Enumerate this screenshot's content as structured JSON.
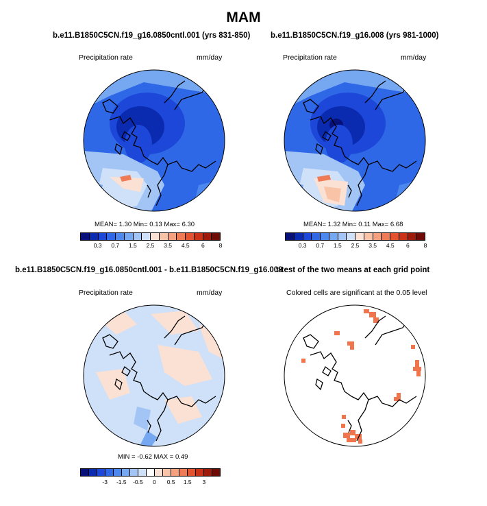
{
  "figure": {
    "title": "MAM",
    "panels": [
      {
        "id": "control",
        "title": "b.e11.B1850C5CN.f19_g16.0850cntl.001 (yrs 831-850)",
        "variable": "Precipitation rate",
        "units": "mm/day",
        "stats": {
          "mean_label": "MEAN=",
          "mean": "1.30",
          "min_label": "Min=",
          "min": "0.13",
          "max_label": "Max=",
          "max": "6.30"
        },
        "colorbar_ticks": [
          "0.3",
          "0.7",
          "1.5",
          "2.5",
          "3.5",
          "4.5",
          "6",
          "8"
        ]
      },
      {
        "id": "experiment",
        "title": "b.e11.B1850C5CN.f19_g16.008 (yrs 981-1000)",
        "variable": "Precipitation rate",
        "units": "mm/day",
        "stats": {
          "mean_label": "MEAN=",
          "mean": "1.32",
          "min_label": "Min=",
          "min": "0.11",
          "max_label": "Max=",
          "max": "6.68"
        },
        "colorbar_ticks": [
          "0.3",
          "0.7",
          "1.5",
          "2.5",
          "3.5",
          "4.5",
          "6",
          "8"
        ]
      },
      {
        "id": "difference",
        "title": "b.e11.B1850C5CN.f19_g16.0850cntl.001 - b.e11.B1850C5CN.f19_g16.008",
        "variable": "Precipitation rate",
        "units": "mm/day",
        "stats": {
          "min_label": "MIN =",
          "min": "-0.62",
          "max_label": "MAX =",
          "max": "0.49"
        },
        "colorbar_ticks": [
          "-3",
          "-1.5",
          "-0.5",
          "0",
          "0.5",
          "1.5",
          "3"
        ]
      },
      {
        "id": "ttest",
        "title": "t-test of the two means at each grid point",
        "subtitle": "Colored cells are significant at the 0.05 level"
      }
    ],
    "colors": {
      "precip_scale": [
        "#08107a",
        "#0a2ab0",
        "#1c47d8",
        "#2f68e6",
        "#4d88ee",
        "#76a8f2",
        "#a3c5f6",
        "#cfe0f9",
        "#fbe1d3",
        "#f9c3a7",
        "#f5a17f",
        "#ef7a56",
        "#e4532f",
        "#c93217",
        "#9e1a0a",
        "#6e0b04"
      ],
      "diff_scale": [
        "#08107a",
        "#0a2ab0",
        "#1c47d8",
        "#2f68e6",
        "#4d88ee",
        "#76a8f2",
        "#a3c5f6",
        "#cfe0f9",
        "#ffffff",
        "#fbe1d3",
        "#f9c3a7",
        "#f5a17f",
        "#ef7a56",
        "#e4532f",
        "#c93217",
        "#9e1a0a",
        "#6e0b04"
      ],
      "significant": "#f0744c"
    }
  }
}
